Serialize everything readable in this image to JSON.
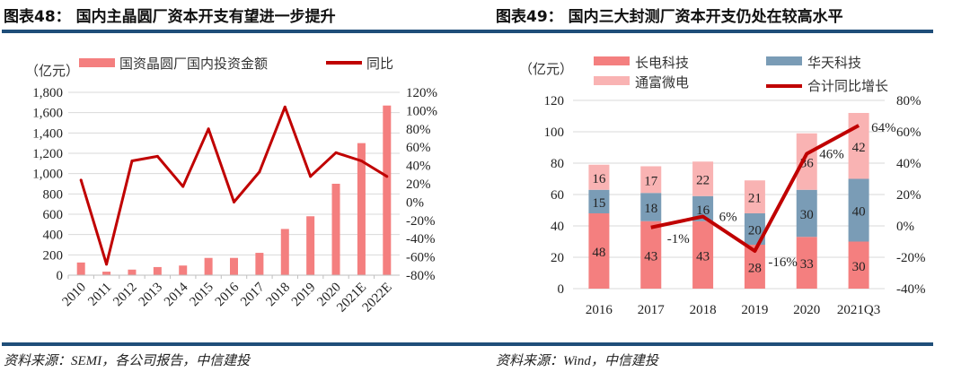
{
  "left": {
    "title": "图表48： 国内主晶圆厂资本开支有望进一步提升",
    "source": "资料来源：SEMI，各公司报告，中信建投",
    "chart_data": {
      "type": "bar+line",
      "unit_label": "（亿元）",
      "categories": [
        "2010",
        "2011",
        "2012",
        "2013",
        "2014",
        "2015",
        "2016",
        "2017",
        "2018",
        "2019",
        "2020",
        "2021E",
        "2022E"
      ],
      "series": [
        {
          "name": "国资晶圆厂国内投资金额",
          "type": "bar",
          "axis": "left",
          "color": "#f47f7f",
          "values": [
            125,
            35,
            55,
            80,
            95,
            170,
            170,
            220,
            455,
            580,
            900,
            1300,
            1670
          ]
        },
        {
          "name": "同比",
          "type": "line",
          "axis": "right",
          "color": "#c00000",
          "values": [
            24,
            -68,
            45,
            50,
            17,
            80,
            0,
            33,
            104,
            28,
            54,
            45,
            28
          ]
        }
      ],
      "ylim_left": [
        0,
        1800
      ],
      "yticks_left": [
        "0",
        "200",
        "400",
        "600",
        "800",
        "1,000",
        "1,200",
        "1,400",
        "1,600",
        "1,800"
      ],
      "ylim_right": [
        -80,
        120
      ],
      "yticks_right": [
        "-80%",
        "-60%",
        "-40%",
        "-20%",
        "0%",
        "20%",
        "40%",
        "60%",
        "80%",
        "100%",
        "120%"
      ],
      "grid": true,
      "legend": "top"
    }
  },
  "right": {
    "title": "图表49： 国内三大封测厂资本开支仍处在较高水平",
    "source": "资料来源：Wind，中信建投",
    "chart_data": {
      "type": "stacked-bar+line",
      "unit_label": "（亿元）",
      "categories": [
        "2016",
        "2017",
        "2018",
        "2019",
        "2020",
        "2021Q3"
      ],
      "series": [
        {
          "name": "长电科技",
          "type": "bar",
          "color": "#f47f7f",
          "values": [
            48,
            43,
            43,
            28,
            33,
            30
          ]
        },
        {
          "name": "华天科技",
          "type": "bar",
          "color": "#7a9cb6",
          "values": [
            15,
            18,
            16,
            20,
            30,
            40
          ]
        },
        {
          "name": "通富微电",
          "type": "bar",
          "color": "#f9b3b3",
          "values": [
            16,
            17,
            22,
            21,
            36,
            42
          ]
        },
        {
          "name": "合计同比增长",
          "type": "line",
          "axis": "right",
          "color": "#c00000",
          "values": [
            null,
            -1,
            6,
            -16,
            46,
            64
          ],
          "labels": [
            "",
            "-1%",
            "6%",
            "-16%",
            "46%",
            "64%"
          ]
        }
      ],
      "ylim_left": [
        0,
        120
      ],
      "yticks_left": [
        "0",
        "20",
        "40",
        "60",
        "80",
        "100",
        "120"
      ],
      "ylim_right": [
        -40,
        80
      ],
      "yticks_right": [
        "-40%",
        "-20%",
        "0%",
        "20%",
        "40%",
        "60%",
        "80%"
      ],
      "grid": true,
      "legend": "top"
    }
  },
  "colors": {
    "rule": "#1f4e79",
    "grid": "#d9d9d9"
  }
}
